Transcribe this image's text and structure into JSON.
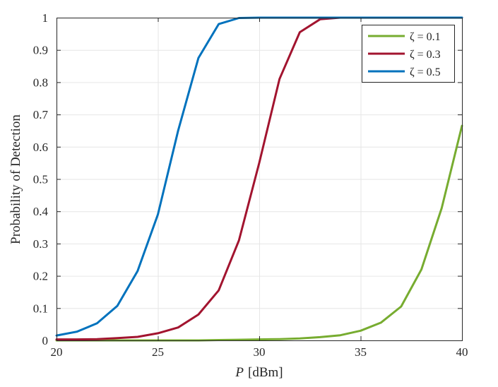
{
  "chart_data": {
    "type": "line",
    "xlabel_var": "P",
    "xlabel_unit": "[dBm]",
    "ylabel": "Probability of Detection",
    "xlim": [
      20,
      40
    ],
    "ylim": [
      0,
      1
    ],
    "xticks": [
      "20",
      "25",
      "30",
      "35",
      "40"
    ],
    "yticks": [
      "0",
      "0.1",
      "0.2",
      "0.3",
      "0.4",
      "0.5",
      "0.6",
      "0.7",
      "0.8",
      "0.9",
      "1"
    ],
    "grid": true,
    "legend_position": "top-right",
    "x": [
      20,
      21,
      22,
      23,
      24,
      25,
      26,
      27,
      28,
      29,
      30,
      31,
      32,
      33,
      34,
      35,
      36,
      37,
      38,
      39,
      40
    ],
    "series": [
      {
        "name": "ζ = 0.1",
        "color": "#77ac30",
        "values": [
          0.0,
          0.0,
          0.0,
          0.0,
          0.0,
          0.0,
          0.0,
          0.0,
          0.001,
          0.002,
          0.003,
          0.004,
          0.006,
          0.01,
          0.016,
          0.03,
          0.055,
          0.105,
          0.22,
          0.41,
          0.665
        ]
      },
      {
        "name": "ζ = 0.3",
        "color": "#a2142f",
        "values": [
          0.003,
          0.003,
          0.004,
          0.007,
          0.011,
          0.022,
          0.04,
          0.08,
          0.155,
          0.31,
          0.55,
          0.81,
          0.955,
          0.995,
          1.0,
          1.0,
          1.0,
          1.0,
          1.0,
          1.0,
          1.0
        ]
      },
      {
        "name": "ζ = 0.5",
        "color": "#0072bd",
        "values": [
          0.015,
          0.027,
          0.053,
          0.107,
          0.215,
          0.39,
          0.65,
          0.875,
          0.98,
          0.999,
          1.0,
          1.0,
          1.0,
          1.0,
          1.0,
          1.0,
          1.0,
          1.0,
          1.0,
          1.0,
          1.0
        ]
      }
    ]
  }
}
